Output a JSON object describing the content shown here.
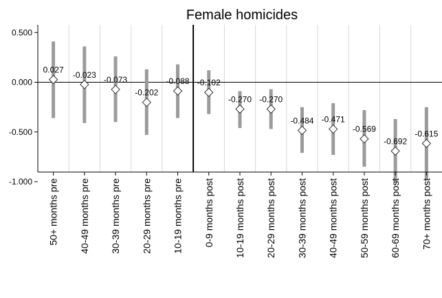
{
  "chart_data": {
    "type": "scatter",
    "title": "Female homicides",
    "xlabel": "",
    "ylabel": "",
    "ylim": [
      -1.05,
      0.55
    ],
    "yticks": [
      0.5,
      0.0,
      -0.5,
      -1.0
    ],
    "ytick_labels": [
      "0.500",
      "0.000",
      "-0.500",
      "-1.000"
    ],
    "categories": [
      "50+ months pre",
      "40-49 months pre",
      "30-39 months pre",
      "20-29 months pre",
      "10-19 months pre",
      "0-9 months post",
      "10-19 months post",
      "20-29 months post",
      "30-39 months post",
      "40-49 months post",
      "50-59 months post",
      "60-69 months post",
      "70+ months post"
    ],
    "values": [
      0.027,
      -0.023,
      -0.073,
      -0.202,
      -0.088,
      -0.102,
      -0.27,
      -0.27,
      -0.484,
      -0.471,
      -0.569,
      -0.692,
      -0.615
    ],
    "value_labels": [
      "0.027",
      "-0.023",
      "-0.073",
      "-0.202",
      "-0.088",
      "-0.102",
      "-0.270",
      "-0.270",
      "-0.484",
      "-0.471",
      "-0.569",
      "-0.692",
      "-0.615"
    ],
    "ci_low": [
      -0.36,
      -0.41,
      -0.4,
      -0.53,
      -0.36,
      -0.32,
      -0.46,
      -0.47,
      -0.71,
      -0.73,
      -0.85,
      -1.01,
      -0.98
    ],
    "ci_high": [
      0.41,
      0.36,
      0.26,
      0.13,
      0.18,
      0.12,
      -0.09,
      -0.07,
      -0.25,
      -0.21,
      -0.28,
      -0.37,
      -0.25
    ],
    "reference_line_y": 0.0,
    "event_divider_after_index": 4,
    "grid": "vertical",
    "colors": {
      "ci_bar": "#9b9b9b",
      "marker_fill": "#ffffff",
      "marker_stroke": "#333333",
      "grid": "#d8d8d8",
      "axis": "#000000"
    }
  }
}
